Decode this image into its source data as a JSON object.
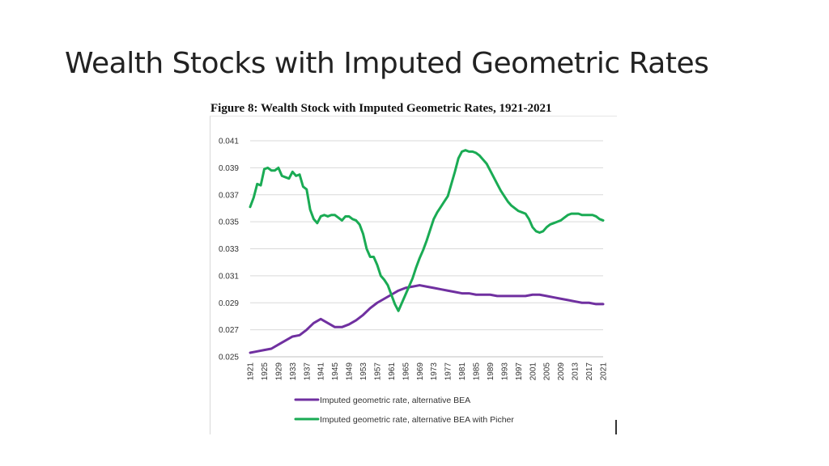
{
  "slide": {
    "title": "Wealth Stocks with Imputed Geometric Rates",
    "figure_caption": "Figure 8: Wealth Stock with Imputed Geometric Rates, 1921-2021"
  },
  "chart_data": {
    "type": "line",
    "xlabel": "",
    "ylabel": "",
    "ylim": [
      0.025,
      0.041
    ],
    "xlim": [
      1921,
      2021
    ],
    "grid": "horizontal",
    "legend_position": "bottom",
    "y_ticks": [
      "0.025",
      "0.027",
      "0.029",
      "0.031",
      "0.033",
      "0.035",
      "0.037",
      "0.039",
      "0.041"
    ],
    "x_ticks": [
      "1921",
      "1925",
      "1929",
      "1933",
      "1937",
      "1941",
      "1945",
      "1949",
      "1953",
      "1957",
      "1961",
      "1965",
      "1969",
      "1973",
      "1977",
      "1981",
      "1985",
      "1989",
      "1993",
      "1997",
      "2001",
      "2005",
      "2009",
      "2013",
      "2017",
      "2021"
    ],
    "series": [
      {
        "name": "Imputed geometric rate, alternative BEA",
        "color": "#7030a0",
        "points": [
          [
            1921,
            0.0253
          ],
          [
            1923,
            0.0254
          ],
          [
            1925,
            0.0255
          ],
          [
            1927,
            0.0256
          ],
          [
            1929,
            0.0259
          ],
          [
            1931,
            0.0262
          ],
          [
            1933,
            0.0265
          ],
          [
            1935,
            0.0266
          ],
          [
            1937,
            0.027
          ],
          [
            1939,
            0.0275
          ],
          [
            1941,
            0.0278
          ],
          [
            1943,
            0.0275
          ],
          [
            1945,
            0.0272
          ],
          [
            1947,
            0.0272
          ],
          [
            1949,
            0.0274
          ],
          [
            1951,
            0.0277
          ],
          [
            1953,
            0.0281
          ],
          [
            1955,
            0.0286
          ],
          [
            1957,
            0.029
          ],
          [
            1959,
            0.0293
          ],
          [
            1961,
            0.0296
          ],
          [
            1963,
            0.0299
          ],
          [
            1965,
            0.0301
          ],
          [
            1967,
            0.0302
          ],
          [
            1969,
            0.0303
          ],
          [
            1971,
            0.0302
          ],
          [
            1973,
            0.0301
          ],
          [
            1975,
            0.03
          ],
          [
            1977,
            0.0299
          ],
          [
            1979,
            0.0298
          ],
          [
            1981,
            0.0297
          ],
          [
            1983,
            0.0297
          ],
          [
            1985,
            0.0296
          ],
          [
            1987,
            0.0296
          ],
          [
            1989,
            0.0296
          ],
          [
            1991,
            0.0295
          ],
          [
            1993,
            0.0295
          ],
          [
            1995,
            0.0295
          ],
          [
            1997,
            0.0295
          ],
          [
            1999,
            0.0295
          ],
          [
            2001,
            0.0296
          ],
          [
            2003,
            0.0296
          ],
          [
            2005,
            0.0295
          ],
          [
            2007,
            0.0294
          ],
          [
            2009,
            0.0293
          ],
          [
            2011,
            0.0292
          ],
          [
            2013,
            0.0291
          ],
          [
            2015,
            0.029
          ],
          [
            2017,
            0.029
          ],
          [
            2019,
            0.0289
          ],
          [
            2021,
            0.0289
          ]
        ]
      },
      {
        "name": "Imputed geometric rate, alternative BEA with Picher",
        "color": "#1aab54",
        "points": [
          [
            1921,
            0.0361
          ],
          [
            1922,
            0.0368
          ],
          [
            1923,
            0.0378
          ],
          [
            1924,
            0.0377
          ],
          [
            1925,
            0.0389
          ],
          [
            1926,
            0.039
          ],
          [
            1927,
            0.0388
          ],
          [
            1928,
            0.0388
          ],
          [
            1929,
            0.039
          ],
          [
            1930,
            0.0384
          ],
          [
            1931,
            0.0383
          ],
          [
            1932,
            0.0382
          ],
          [
            1933,
            0.0387
          ],
          [
            1934,
            0.0384
          ],
          [
            1935,
            0.0385
          ],
          [
            1936,
            0.0376
          ],
          [
            1937,
            0.0374
          ],
          [
            1938,
            0.0359
          ],
          [
            1939,
            0.0352
          ],
          [
            1940,
            0.0349
          ],
          [
            1941,
            0.0354
          ],
          [
            1942,
            0.0355
          ],
          [
            1943,
            0.0354
          ],
          [
            1944,
            0.0355
          ],
          [
            1945,
            0.0355
          ],
          [
            1946,
            0.0353
          ],
          [
            1947,
            0.0351
          ],
          [
            1948,
            0.0354
          ],
          [
            1949,
            0.0354
          ],
          [
            1950,
            0.0352
          ],
          [
            1951,
            0.0351
          ],
          [
            1952,
            0.0348
          ],
          [
            1953,
            0.0341
          ],
          [
            1954,
            0.033
          ],
          [
            1955,
            0.0324
          ],
          [
            1956,
            0.0324
          ],
          [
            1957,
            0.0318
          ],
          [
            1958,
            0.031
          ],
          [
            1959,
            0.0307
          ],
          [
            1960,
            0.0303
          ],
          [
            1961,
            0.0296
          ],
          [
            1962,
            0.0289
          ],
          [
            1963,
            0.0284
          ],
          [
            1964,
            0.029
          ],
          [
            1965,
            0.0296
          ],
          [
            1966,
            0.0302
          ],
          [
            1967,
            0.0308
          ],
          [
            1968,
            0.0316
          ],
          [
            1969,
            0.0323
          ],
          [
            1970,
            0.0329
          ],
          [
            1971,
            0.0336
          ],
          [
            1972,
            0.0344
          ],
          [
            1973,
            0.0352
          ],
          [
            1974,
            0.0357
          ],
          [
            1975,
            0.0361
          ],
          [
            1976,
            0.0365
          ],
          [
            1977,
            0.0369
          ],
          [
            1978,
            0.0378
          ],
          [
            1979,
            0.0387
          ],
          [
            1980,
            0.0397
          ],
          [
            1981,
            0.0402
          ],
          [
            1982,
            0.0403
          ],
          [
            1983,
            0.0402
          ],
          [
            1984,
            0.0402
          ],
          [
            1985,
            0.0401
          ],
          [
            1986,
            0.0399
          ],
          [
            1987,
            0.0396
          ],
          [
            1988,
            0.0393
          ],
          [
            1989,
            0.0388
          ],
          [
            1990,
            0.0383
          ],
          [
            1991,
            0.0378
          ],
          [
            1992,
            0.0373
          ],
          [
            1993,
            0.0369
          ],
          [
            1994,
            0.0365
          ],
          [
            1995,
            0.0362
          ],
          [
            1996,
            0.036
          ],
          [
            1997,
            0.0358
          ],
          [
            1998,
            0.0357
          ],
          [
            1999,
            0.0356
          ],
          [
            2000,
            0.0352
          ],
          [
            2001,
            0.0346
          ],
          [
            2002,
            0.0343
          ],
          [
            2003,
            0.0342
          ],
          [
            2004,
            0.0343
          ],
          [
            2005,
            0.0346
          ],
          [
            2006,
            0.0348
          ],
          [
            2007,
            0.0349
          ],
          [
            2008,
            0.035
          ],
          [
            2009,
            0.0351
          ],
          [
            2010,
            0.0353
          ],
          [
            2011,
            0.0355
          ],
          [
            2012,
            0.0356
          ],
          [
            2013,
            0.0356
          ],
          [
            2014,
            0.0356
          ],
          [
            2015,
            0.0355
          ],
          [
            2016,
            0.0355
          ],
          [
            2017,
            0.0355
          ],
          [
            2018,
            0.0355
          ],
          [
            2019,
            0.0354
          ],
          [
            2020,
            0.0352
          ],
          [
            2021,
            0.0351
          ]
        ]
      }
    ]
  }
}
